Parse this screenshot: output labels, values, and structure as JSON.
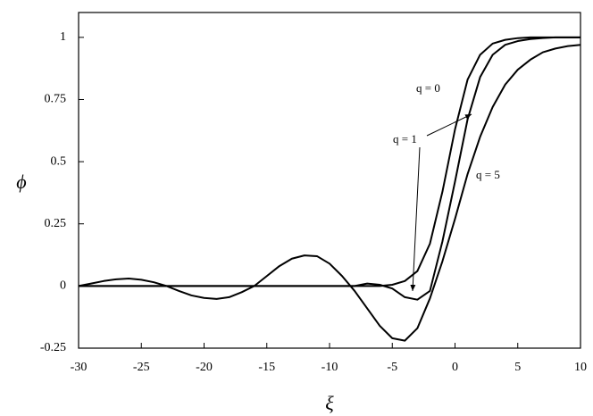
{
  "chart_data": {
    "type": "line",
    "x_label": "ξ",
    "y_label": "ϕ",
    "x": [
      -30,
      -29,
      -28,
      -27,
      -26,
      -25,
      -24,
      -23,
      -22,
      -21,
      -20,
      -19,
      -18,
      -17,
      -16,
      -15,
      -14,
      -13,
      -12,
      -11,
      -10,
      -9,
      -8,
      -7,
      -6,
      -5,
      -4,
      -3,
      -2,
      -1,
      0,
      1,
      2,
      3,
      4,
      5,
      6,
      7,
      8,
      9,
      10
    ],
    "series": [
      {
        "name": "q = 0",
        "color": "#000000",
        "values": [
          0,
          0,
          0,
          0,
          0,
          0,
          0,
          0,
          0,
          0,
          0,
          0,
          0,
          0,
          0,
          0,
          0,
          0,
          0,
          0,
          0,
          0,
          0,
          0,
          0,
          0.005,
          0.02,
          0.06,
          0.17,
          0.38,
          0.63,
          0.83,
          0.93,
          0.975,
          0.99,
          0.997,
          1,
          1,
          1,
          1,
          1
        ]
      },
      {
        "name": "q = 1",
        "color": "#000000",
        "values": [
          0,
          0,
          0,
          0,
          0,
          0,
          0,
          0,
          0,
          0,
          0,
          0,
          0,
          0,
          0,
          0,
          0,
          0,
          0,
          0,
          0,
          0,
          0,
          0.01,
          0.005,
          -0.01,
          -0.045,
          -0.055,
          -0.02,
          0.18,
          0.42,
          0.67,
          0.84,
          0.93,
          0.97,
          0.985,
          0.993,
          0.997,
          1,
          1,
          1
        ]
      },
      {
        "name": "q = 5",
        "color": "#000000",
        "values": [
          0,
          0.01,
          0.02,
          0.027,
          0.03,
          0.025,
          0.015,
          0,
          -0.02,
          -0.038,
          -0.048,
          -0.052,
          -0.045,
          -0.025,
          0,
          0.04,
          0.08,
          0.11,
          0.123,
          0.12,
          0.09,
          0.04,
          -0.02,
          -0.09,
          -0.16,
          -0.21,
          -0.22,
          -0.17,
          -0.05,
          0.1,
          0.27,
          0.45,
          0.6,
          0.72,
          0.81,
          0.87,
          0.91,
          0.94,
          0.955,
          0.965,
          0.97
        ]
      }
    ],
    "xlim": [
      -30,
      10
    ],
    "ylim": [
      -0.25,
      1.1
    ],
    "xticks": [
      -30,
      -25,
      -20,
      -15,
      -10,
      -5,
      0,
      5,
      10
    ],
    "yticks": [
      -0.25,
      0,
      0.25,
      0.5,
      0.75,
      1
    ],
    "grid": false
  }
}
